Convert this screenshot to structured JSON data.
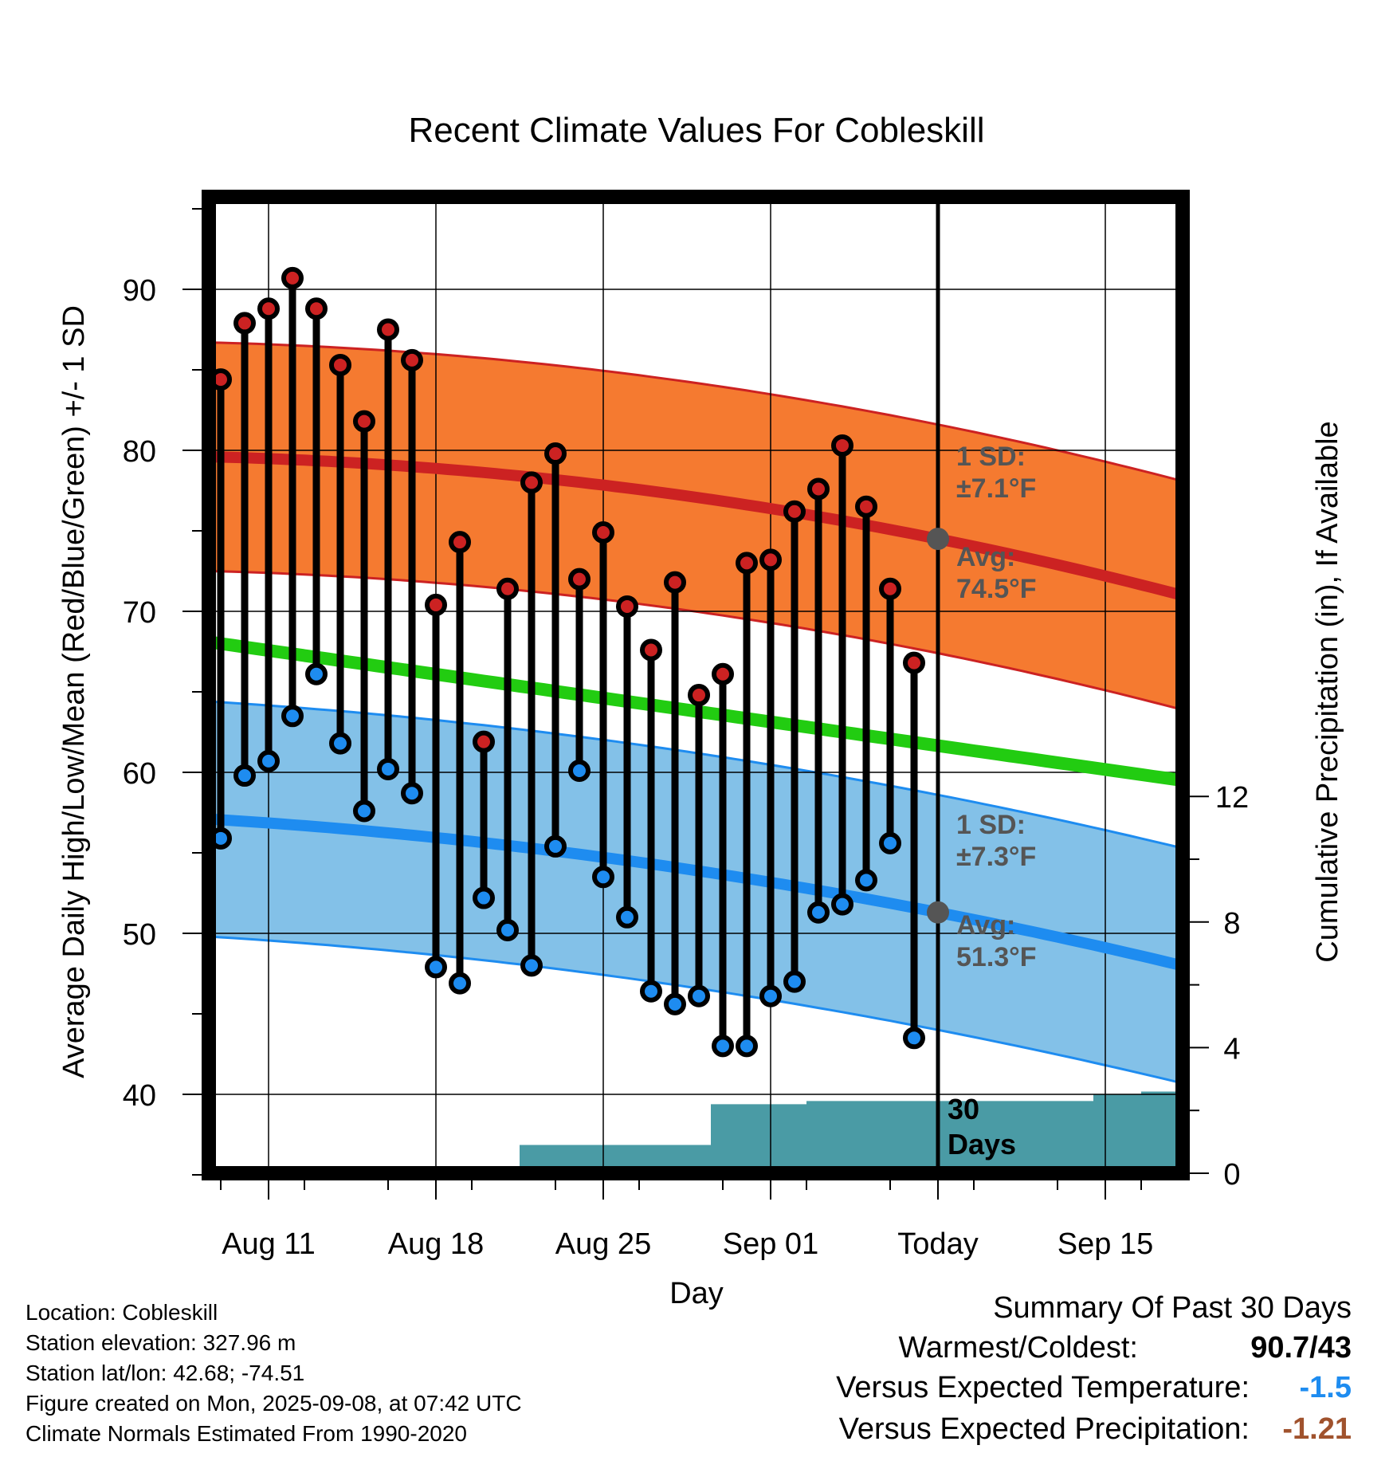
{
  "chart_data": {
    "type": "line",
    "title": "Recent Climate Values For Cobleskill",
    "xlabel": "Day",
    "ylabel": "Average Daily High/Low/Mean (Red/Blue/Green) +/- 1 SD",
    "y2label": "Cumulative Precipitation (in), If Available",
    "ylim": [
      35,
      96
    ],
    "y2lim": [
      0,
      30
    ],
    "yticks": [
      "40",
      "50",
      "60",
      "70",
      "80",
      "90"
    ],
    "y2ticks": [
      "0",
      "4",
      "8",
      "12"
    ],
    "xticks": [
      "Aug 11",
      "Aug 18",
      "Aug 25",
      "Sep 01",
      "Today",
      "Sep 15"
    ],
    "today_label": [
      "30",
      "Days"
    ],
    "highs": [
      84.4,
      87.9,
      88.8,
      90.7,
      88.8,
      85.3,
      81.8,
      87.5,
      85.6,
      70.4,
      74.3,
      61.9,
      71.4,
      78.0,
      79.8,
      72.0,
      74.9,
      70.3,
      67.6,
      71.8,
      64.8,
      66.1,
      73.0,
      73.2,
      76.2,
      77.6,
      80.3,
      76.5,
      71.4,
      66.8
    ],
    "lows": [
      55.9,
      59.8,
      60.7,
      63.5,
      66.1,
      61.8,
      57.6,
      60.2,
      58.7,
      47.9,
      46.9,
      52.2,
      50.2,
      48.0,
      55.4,
      60.1,
      53.5,
      51.0,
      46.4,
      45.6,
      46.1,
      43.0,
      43.0,
      46.1,
      47.0,
      51.3,
      51.8,
      53.3,
      55.6,
      43.5
    ],
    "normal_high_start": 79.6,
    "normal_high_today": 74.5,
    "normal_high_end": 71.0,
    "normal_low_start": 57.1,
    "normal_low_today": 51.3,
    "normal_low_end": 48.0,
    "normal_mean_start": 68.1,
    "normal_mean_end": 59.5,
    "precip_steps": [
      [
        12.0,
        0.0
      ],
      [
        13.0,
        0.9
      ],
      [
        20.0,
        0.9
      ],
      [
        21.0,
        2.2
      ],
      [
        25.0,
        2.3
      ],
      [
        36.0,
        2.3
      ],
      [
        37.0,
        2.5
      ],
      [
        38.0,
        2.5
      ],
      [
        39.0,
        2.6
      ]
    ],
    "high_sd_text": [
      "1 SD:",
      "±7.1°F"
    ],
    "high_avg_text": [
      "Avg:",
      "74.5°F"
    ],
    "low_sd_text": [
      "1 SD:",
      "±7.3°F"
    ],
    "low_avg_text": [
      "Avg:",
      "51.3°F"
    ],
    "colors": {
      "high_band": "#f57a30",
      "high_line": "#cc2222",
      "low_band": "#83c1e8",
      "low_line": "#1e8cf0",
      "mean_line": "#22cc11",
      "precip": "#4a9ba5",
      "high_dot": "#cc2222",
      "low_dot": "#1e8cf0"
    }
  },
  "info": {
    "location": "Location: Cobleskill",
    "elevation": "Station elevation: 327.96 m",
    "latlon": "Station lat/lon: 42.68; -74.51",
    "created": "Figure created on Mon, 2025-09-08, at 07:42 UTC",
    "normals": "Climate Normals Estimated From 1990-2020"
  },
  "summary": {
    "heading": "Summary Of Past 30 Days",
    "warm_label": "Warmest/Coldest:",
    "warm_value": "90.7/43",
    "temp_label": "Versus Expected Temperature:",
    "temp_value": "-1.5",
    "temp_color": "#1e8cf0",
    "precip_label": "Versus Expected Precipitation:",
    "precip_value": "-1.21",
    "precip_color": "#a0522d"
  }
}
